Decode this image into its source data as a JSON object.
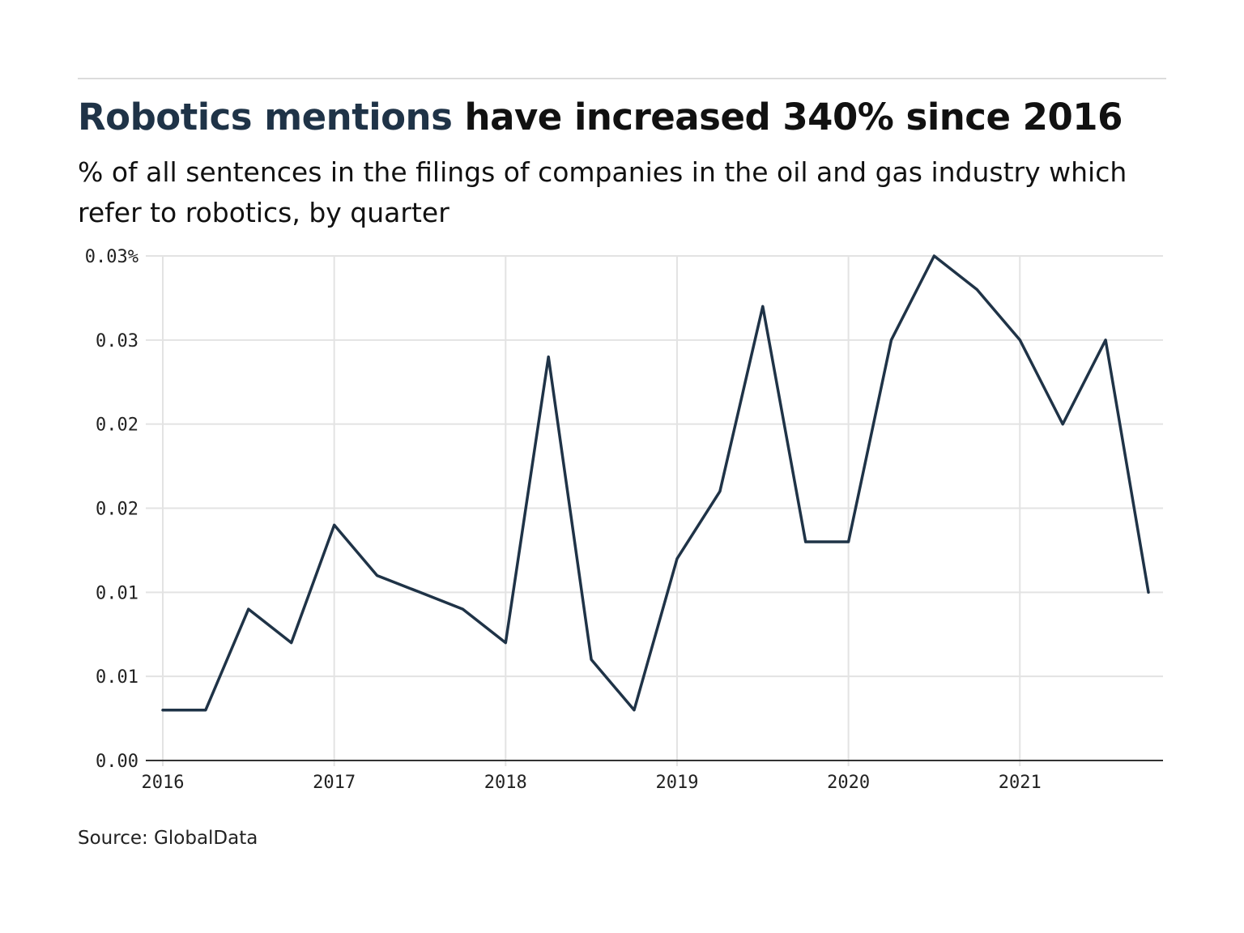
{
  "header": {
    "title_highlight": "Robotics mentions",
    "title_rest": " have increased 340% since 2016",
    "subtitle": "% of all sentences in the filings of companies in the oil and gas industry which refer to robotics, by quarter"
  },
  "source": "Source: GlobalData",
  "colors": {
    "line": "#1f3347",
    "grid": "#e3e3e3",
    "axis": "#333333",
    "accent": "#1f3347"
  },
  "chart_data": {
    "type": "line",
    "grid": true,
    "x_range": [
      2016,
      2021.75
    ],
    "x_ticks": [
      {
        "value": 2016,
        "label": "2016"
      },
      {
        "value": 2017,
        "label": "2017"
      },
      {
        "value": 2018,
        "label": "2018"
      },
      {
        "value": 2019,
        "label": "2019"
      },
      {
        "value": 2020,
        "label": "2020"
      },
      {
        "value": 2021,
        "label": "2021"
      }
    ],
    "ylim": [
      0,
      0.03
    ],
    "y_ticks": [
      {
        "value": 0,
        "label": "0.00"
      },
      {
        "value": 0.005,
        "label": "0.01"
      },
      {
        "value": 0.01,
        "label": "0.01"
      },
      {
        "value": 0.015,
        "label": "0.02"
      },
      {
        "value": 0.02,
        "label": "0.02"
      },
      {
        "value": 0.025,
        "label": "0.03"
      },
      {
        "value": 0.03,
        "label": "0.03%"
      }
    ],
    "series": [
      {
        "x": [
          2016,
          2016.25,
          2016.5,
          2016.75,
          2017,
          2017.25,
          2017.5,
          2017.75,
          2018,
          2018.25,
          2018.5,
          2018.75,
          2019,
          2019.25,
          2019.5,
          2019.75,
          2020,
          2020.25,
          2020.5,
          2020.75,
          2021,
          2021.25,
          2021.5,
          2021.75
        ],
        "values": [
          0.003,
          0.003,
          0.009,
          0.007,
          0.014,
          0.011,
          0.01,
          0.009,
          0.007,
          0.024,
          0.006,
          0.003,
          0.012,
          0.016,
          0.027,
          0.013,
          0.013,
          0.025,
          0.03,
          0.028,
          0.025,
          0.02,
          0.025,
          0.01
        ]
      }
    ]
  }
}
